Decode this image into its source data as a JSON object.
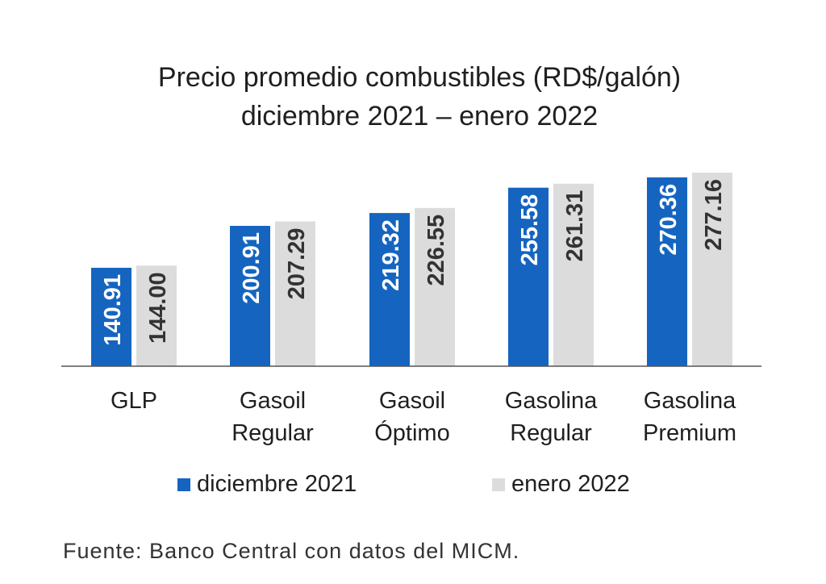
{
  "title": {
    "line1": "Precio promedio combustibles (RD$/galón)",
    "line2": "diciembre 2021 – enero 2022"
  },
  "source": "Fuente: Banco Central con datos del MICM.",
  "colors": {
    "series1": "#1565C0",
    "series2": "#DCDCDC",
    "axis": "#555555"
  },
  "chart_data": {
    "type": "bar",
    "categories": [
      [
        "GLP"
      ],
      [
        "Gasoil",
        "Regular"
      ],
      [
        "Gasoil",
        "Óptimo"
      ],
      [
        "Gasolina",
        "Regular"
      ],
      [
        "Gasolina",
        "Premium"
      ]
    ],
    "series": [
      {
        "name": "diciembre 2021",
        "values": [
          140.91,
          200.91,
          219.32,
          255.58,
          270.36
        ],
        "labels": [
          "140.91",
          "200.91",
          "219.32",
          "255.58",
          "270.36"
        ]
      },
      {
        "name": "enero 2022",
        "values": [
          144.0,
          207.29,
          226.55,
          261.31,
          277.16
        ],
        "labels": [
          "144.00",
          "207.29",
          "226.55",
          "261.31",
          "277.16"
        ]
      }
    ],
    "legend": "bottom",
    "grid": false
  }
}
